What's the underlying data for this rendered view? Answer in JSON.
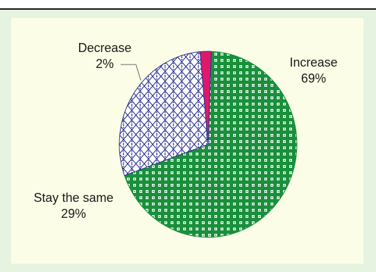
{
  "chart_data": {
    "type": "pie",
    "slices": [
      {
        "label": "Increase",
        "value": 69,
        "value_label": "69%",
        "color": "#1a8f3c",
        "pattern": "checker"
      },
      {
        "label": "Stay the same",
        "value": 29,
        "value_label": "29%",
        "color": "#2a2f8f",
        "pattern": "diamond-hatch"
      },
      {
        "label": "Decrease",
        "value": 2,
        "value_label": "2%",
        "color": "#e0186c",
        "pattern": "solid"
      }
    ],
    "colors": {
      "panel": "#e6f3e1",
      "plot": "#fbfde6"
    }
  }
}
